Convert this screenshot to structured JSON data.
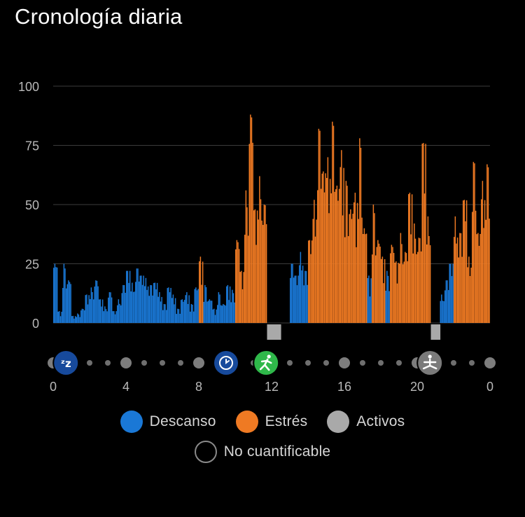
{
  "title": "Cronología diaria",
  "colors": {
    "rest": "#1a78d6",
    "stress": "#ef7a23",
    "active": "#a9a9a9",
    "unmeasurable": "#8a8a8a",
    "grid": "#3c3c3c",
    "axis_text": "#b9b9b9"
  },
  "legend": {
    "rest": "Descanso",
    "stress": "Estrés",
    "active": "Activos",
    "unmeasurable": "No cuantificable"
  },
  "timeline_icons": [
    {
      "name": "sleep-icon",
      "hour": 0.7,
      "glyph": "zz",
      "color": "#174a9c"
    },
    {
      "name": "clock-icon",
      "hour": 9.5,
      "glyph": "clock",
      "color": "#174a9c"
    },
    {
      "name": "run-icon",
      "hour": 11.7,
      "glyph": "run",
      "color": "#2fb84a"
    },
    {
      "name": "yoga-icon",
      "hour": 20.7,
      "glyph": "yoga",
      "color": "#7a7a7a"
    }
  ],
  "chart_data": {
    "type": "bar",
    "title": "",
    "xlabel": "",
    "ylabel": "",
    "xlim": [
      0,
      24
    ],
    "ylim": [
      0,
      100
    ],
    "y_ticks": [
      0,
      25,
      50,
      75,
      100
    ],
    "x_ticks": [
      {
        "hour": 0,
        "label": "0"
      },
      {
        "hour": 4,
        "label": "4"
      },
      {
        "hour": 8,
        "label": "8"
      },
      {
        "hour": 12,
        "label": "12"
      },
      {
        "hour": 16,
        "label": "16"
      },
      {
        "hour": 20,
        "label": "20"
      },
      {
        "hour": 24,
        "label": "0"
      }
    ],
    "grid": true,
    "segments": [
      {
        "hour": 0.0,
        "value": 25,
        "category": "rest"
      },
      {
        "hour": 0.25,
        "value": 5,
        "category": "rest"
      },
      {
        "hour": 0.5,
        "value": 25,
        "category": "rest"
      },
      {
        "hour": 0.75,
        "value": 18,
        "category": "rest"
      },
      {
        "hour": 1.0,
        "value": 3,
        "category": "rest"
      },
      {
        "hour": 1.25,
        "value": 4,
        "category": "rest"
      },
      {
        "hour": 1.5,
        "value": 6,
        "category": "rest"
      },
      {
        "hour": 1.75,
        "value": 12,
        "category": "rest"
      },
      {
        "hour": 2.0,
        "value": 15,
        "category": "rest"
      },
      {
        "hour": 2.25,
        "value": 18,
        "category": "rest"
      },
      {
        "hour": 2.5,
        "value": 10,
        "category": "rest"
      },
      {
        "hour": 2.75,
        "value": 7,
        "category": "rest"
      },
      {
        "hour": 3.0,
        "value": 13,
        "category": "rest"
      },
      {
        "hour": 3.25,
        "value": 5,
        "category": "rest"
      },
      {
        "hour": 3.5,
        "value": 10,
        "category": "rest"
      },
      {
        "hour": 3.75,
        "value": 16,
        "category": "rest"
      },
      {
        "hour": 4.0,
        "value": 22,
        "category": "rest"
      },
      {
        "hour": 4.25,
        "value": 17,
        "category": "rest"
      },
      {
        "hour": 4.5,
        "value": 23,
        "category": "rest"
      },
      {
        "hour": 4.75,
        "value": 20,
        "category": "rest"
      },
      {
        "hour": 5.0,
        "value": 19,
        "category": "rest"
      },
      {
        "hour": 5.25,
        "value": 16,
        "category": "rest"
      },
      {
        "hour": 5.5,
        "value": 17,
        "category": "rest"
      },
      {
        "hour": 5.75,
        "value": 13,
        "category": "rest"
      },
      {
        "hour": 6.0,
        "value": 8,
        "category": "rest"
      },
      {
        "hour": 6.25,
        "value": 15,
        "category": "rest"
      },
      {
        "hour": 6.5,
        "value": 12,
        "category": "rest"
      },
      {
        "hour": 6.75,
        "value": 6,
        "category": "rest"
      },
      {
        "hour": 7.0,
        "value": 10,
        "category": "rest"
      },
      {
        "hour": 7.25,
        "value": 13,
        "category": "rest"
      },
      {
        "hour": 7.5,
        "value": 8,
        "category": "rest"
      },
      {
        "hour": 7.75,
        "value": 15,
        "category": "rest"
      },
      {
        "hour": 8.0,
        "value": 28,
        "category": "stress"
      },
      {
        "hour": 8.25,
        "value": 16,
        "category": "rest"
      },
      {
        "hour": 8.5,
        "value": 10,
        "category": "rest"
      },
      {
        "hour": 8.75,
        "value": 6,
        "category": "rest"
      },
      {
        "hour": 9.0,
        "value": 13,
        "category": "rest"
      },
      {
        "hour": 9.25,
        "value": 8,
        "category": "rest"
      },
      {
        "hour": 9.5,
        "value": 16,
        "category": "rest"
      },
      {
        "hour": 9.75,
        "value": 14,
        "category": "rest"
      },
      {
        "hour": 10.0,
        "value": 35,
        "category": "stress"
      },
      {
        "hour": 10.25,
        "value": 22,
        "category": "stress"
      },
      {
        "hour": 10.5,
        "value": 56,
        "category": "stress"
      },
      {
        "hour": 10.75,
        "value": 88,
        "category": "stress"
      },
      {
        "hour": 11.0,
        "value": 48,
        "category": "stress"
      },
      {
        "hour": 11.25,
        "value": 62,
        "category": "stress"
      },
      {
        "hour": 11.5,
        "value": 50,
        "category": "stress"
      },
      {
        "hour": 11.75,
        "value": 0,
        "category": "active"
      },
      {
        "hour": 12.0,
        "value": 0,
        "category": "active"
      },
      {
        "hour": 12.25,
        "value": 0,
        "category": "active"
      },
      {
        "hour": 12.5,
        "value": 0,
        "category": "rest"
      },
      {
        "hour": 12.75,
        "value": 0,
        "category": "rest"
      },
      {
        "hour": 13.0,
        "value": 25,
        "category": "rest"
      },
      {
        "hour": 13.25,
        "value": 20,
        "category": "rest"
      },
      {
        "hour": 13.5,
        "value": 30,
        "category": "rest"
      },
      {
        "hour": 13.75,
        "value": 22,
        "category": "rest"
      },
      {
        "hour": 14.0,
        "value": 35,
        "category": "stress"
      },
      {
        "hour": 14.25,
        "value": 52,
        "category": "stress"
      },
      {
        "hour": 14.5,
        "value": 82,
        "category": "stress"
      },
      {
        "hour": 14.75,
        "value": 64,
        "category": "stress"
      },
      {
        "hour": 15.0,
        "value": 70,
        "category": "stress"
      },
      {
        "hour": 15.25,
        "value": 85,
        "category": "stress"
      },
      {
        "hour": 15.5,
        "value": 58,
        "category": "stress"
      },
      {
        "hour": 15.75,
        "value": 73,
        "category": "stress"
      },
      {
        "hour": 16.0,
        "value": 60,
        "category": "stress"
      },
      {
        "hour": 16.25,
        "value": 48,
        "category": "stress"
      },
      {
        "hour": 16.5,
        "value": 55,
        "category": "stress"
      },
      {
        "hour": 16.75,
        "value": 78,
        "category": "stress"
      },
      {
        "hour": 17.0,
        "value": 40,
        "category": "stress"
      },
      {
        "hour": 17.25,
        "value": 20,
        "category": "rest"
      },
      {
        "hour": 17.5,
        "value": 50,
        "category": "stress"
      },
      {
        "hour": 17.75,
        "value": 35,
        "category": "stress"
      },
      {
        "hour": 18.0,
        "value": 28,
        "category": "stress"
      },
      {
        "hour": 18.25,
        "value": 22,
        "category": "rest"
      },
      {
        "hour": 18.5,
        "value": 33,
        "category": "stress"
      },
      {
        "hour": 18.75,
        "value": 26,
        "category": "stress"
      },
      {
        "hour": 19.0,
        "value": 38,
        "category": "stress"
      },
      {
        "hour": 19.25,
        "value": 30,
        "category": "stress"
      },
      {
        "hour": 19.5,
        "value": 55,
        "category": "stress"
      },
      {
        "hour": 19.75,
        "value": 42,
        "category": "stress"
      },
      {
        "hour": 20.0,
        "value": 36,
        "category": "stress"
      },
      {
        "hour": 20.25,
        "value": 76,
        "category": "stress"
      },
      {
        "hour": 20.5,
        "value": 45,
        "category": "stress"
      },
      {
        "hour": 20.75,
        "value": 0,
        "category": "active"
      },
      {
        "hour": 21.0,
        "value": 0,
        "category": "active"
      },
      {
        "hour": 21.25,
        "value": 12,
        "category": "rest"
      },
      {
        "hour": 21.5,
        "value": 18,
        "category": "rest"
      },
      {
        "hour": 21.75,
        "value": 25,
        "category": "rest"
      },
      {
        "hour": 22.0,
        "value": 45,
        "category": "stress"
      },
      {
        "hour": 22.25,
        "value": 38,
        "category": "stress"
      },
      {
        "hour": 22.5,
        "value": 52,
        "category": "stress"
      },
      {
        "hour": 22.75,
        "value": 28,
        "category": "stress"
      },
      {
        "hour": 23.0,
        "value": 68,
        "category": "stress"
      },
      {
        "hour": 23.25,
        "value": 38,
        "category": "stress"
      },
      {
        "hour": 23.5,
        "value": 60,
        "category": "stress"
      },
      {
        "hour": 23.75,
        "value": 67,
        "category": "stress"
      }
    ]
  }
}
